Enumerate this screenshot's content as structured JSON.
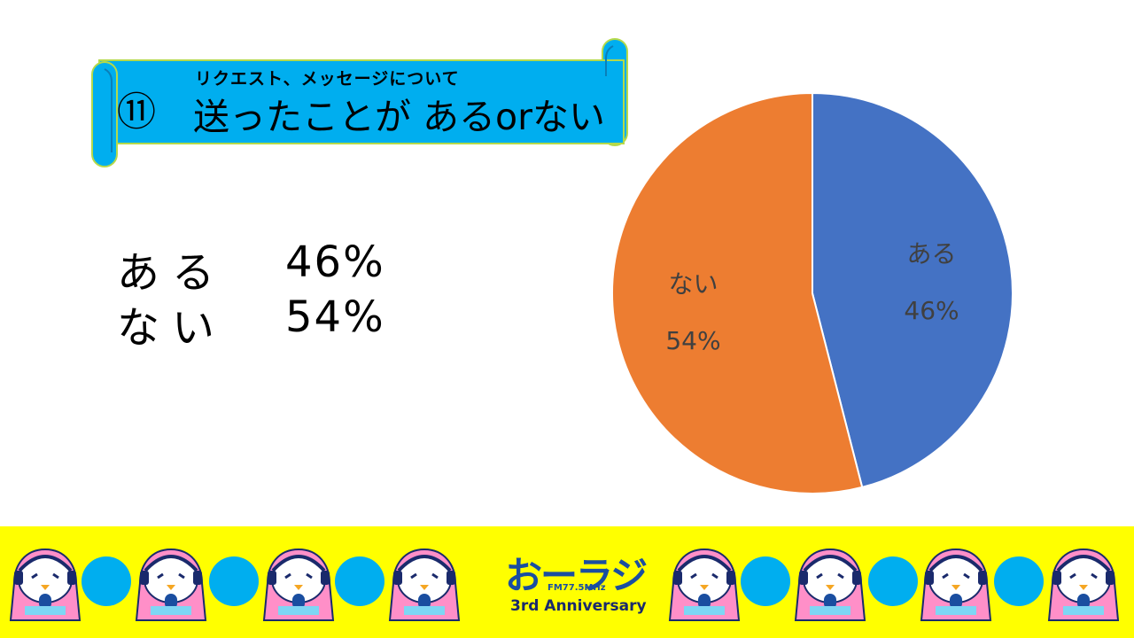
{
  "title": {
    "number": "⑪",
    "subtitle": "リクエスト、メッセージについて",
    "main": "送ったことが あるorない"
  },
  "summary": [
    {
      "label": "ある",
      "value": "46%"
    },
    {
      "label": "ない",
      "value": "54%"
    }
  ],
  "chart_data": {
    "type": "pie",
    "categories": [
      "ある",
      "ない"
    ],
    "values": [
      46,
      54
    ],
    "data_labels": [
      "46%",
      "54%"
    ],
    "colors": [
      "#4472c4",
      "#ed7d31"
    ],
    "legend": "none"
  },
  "footer": {
    "logo_text": "おーラジ",
    "logo_freq": "FM77.5MHz",
    "anniversary": "3rd Anniversary",
    "background": "#ffff00",
    "dot_color": "#00aeef"
  }
}
